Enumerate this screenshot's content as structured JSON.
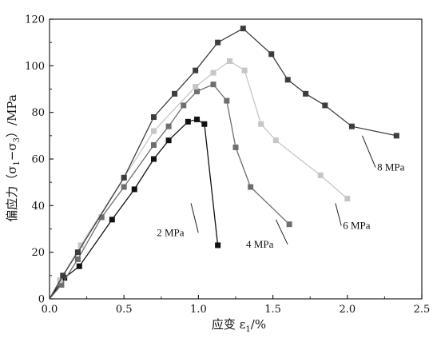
{
  "chart_data": {
    "type": "line",
    "xlabel": "应变 ε",
    "xlabel_subscript": "1",
    "xlabel_unit": "/%",
    "ylabel": "偏应力（σ1−σ3）/MPa",
    "ylabel_parts": {
      "prefix": "偏应力（σ",
      "sub1": "1",
      "mid": "−σ",
      "sub3": "3",
      "suffix": "）/MPa"
    },
    "xlim": [
      0,
      2.5
    ],
    "ylim": [
      0,
      120
    ],
    "x_ticks": [
      "0.0",
      "0.5",
      "1.0",
      "1.5",
      "2.0",
      "2.5"
    ],
    "y_ticks": [
      "0",
      "20",
      "40",
      "60",
      "80",
      "100",
      "120"
    ],
    "grid": false,
    "legend": "none",
    "series": [
      {
        "name": "2 MPa",
        "color": "#111111",
        "label_anchor": [
          0.95,
          41
        ],
        "label_at": [
          0.72,
          27
        ],
        "points": [
          [
            0.0,
            0
          ],
          [
            0.1,
            9
          ],
          [
            0.2,
            14
          ],
          [
            0.42,
            34
          ],
          [
            0.57,
            47
          ],
          [
            0.7,
            60
          ],
          [
            0.8,
            68
          ],
          [
            0.93,
            76
          ],
          [
            0.99,
            77
          ],
          [
            1.04,
            75
          ],
          [
            1.13,
            23
          ]
        ]
      },
      {
        "name": "4 MPa",
        "color": "#6e6e6e",
        "label_anchor": [
          1.52,
          34
        ],
        "label_at": [
          1.32,
          22
        ],
        "points": [
          [
            0.0,
            0
          ],
          [
            0.08,
            6
          ],
          [
            0.19,
            17
          ],
          [
            0.35,
            35
          ],
          [
            0.5,
            48
          ],
          [
            0.7,
            66
          ],
          [
            0.8,
            74
          ],
          [
            0.9,
            83
          ],
          [
            0.99,
            89
          ],
          [
            1.1,
            92
          ],
          [
            1.19,
            85
          ],
          [
            1.25,
            65
          ],
          [
            1.35,
            48
          ],
          [
            1.61,
            32
          ]
        ]
      },
      {
        "name": "6 MPa",
        "color": "#c6c6c6",
        "label_anchor": [
          1.92,
          41
        ],
        "label_at": [
          1.97,
          30
        ],
        "points": [
          [
            0.0,
            0
          ],
          [
            0.07,
            8
          ],
          [
            0.21,
            23
          ],
          [
            0.5,
            52
          ],
          [
            0.7,
            72
          ],
          [
            0.98,
            91
          ],
          [
            1.1,
            97
          ],
          [
            1.21,
            102
          ],
          [
            1.31,
            98
          ],
          [
            1.42,
            75
          ],
          [
            1.52,
            68
          ],
          [
            1.82,
            53
          ],
          [
            2.0,
            43
          ]
        ]
      },
      {
        "name": "8 MPa",
        "color": "#3d3d3d",
        "label_anchor": [
          2.1,
          70
        ],
        "label_at": [
          2.2,
          55
        ],
        "points": [
          [
            0.0,
            0
          ],
          [
            0.09,
            10
          ],
          [
            0.19,
            20
          ],
          [
            0.5,
            52
          ],
          [
            0.7,
            78
          ],
          [
            0.84,
            88
          ],
          [
            0.98,
            98
          ],
          [
            1.13,
            110
          ],
          [
            1.3,
            116
          ],
          [
            1.49,
            105
          ],
          [
            1.6,
            94
          ],
          [
            1.72,
            88
          ],
          [
            1.85,
            83
          ],
          [
            2.03,
            74
          ],
          [
            2.33,
            70
          ]
        ]
      }
    ]
  }
}
